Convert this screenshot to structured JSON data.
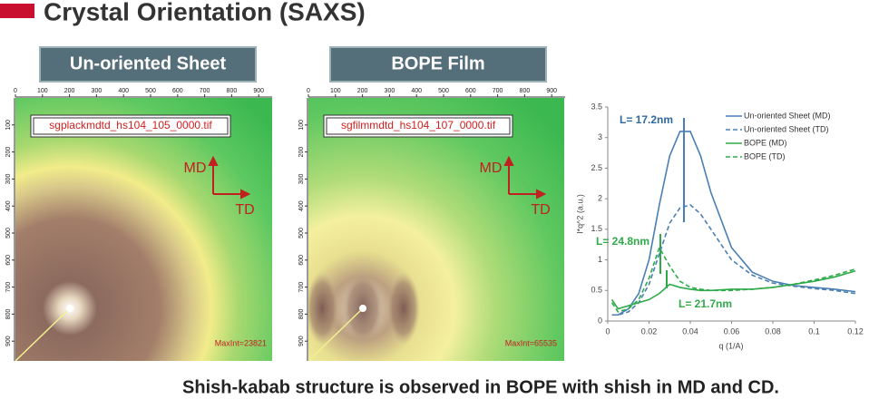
{
  "header": {
    "title": "Crystal Orientation (SAXS)"
  },
  "panels": [
    {
      "label": "Un-oriented Sheet",
      "file": "sgplackmdtd_hs104_105_0000.tif",
      "maxint": "MaxInt=23821",
      "md": "MD",
      "td": "TD"
    },
    {
      "label": "BOPE Film",
      "file": "sgfilmmdtd_hs104_107_0000.tif",
      "maxint": "MaxInt=65535",
      "md": "MD",
      "td": "TD"
    }
  ],
  "image_axis_ticks": [
    0,
    100,
    200,
    300,
    400,
    500,
    600,
    700,
    800,
    900
  ],
  "chart_data": {
    "type": "line",
    "x_label": "q (1/A)",
    "y_label": "I*q^2 (a.u.)",
    "x": [
      0.002,
      0.005,
      0.01,
      0.015,
      0.02,
      0.025,
      0.03,
      0.035,
      0.04,
      0.045,
      0.05,
      0.06,
      0.07,
      0.08,
      0.09,
      0.1,
      0.11,
      0.12
    ],
    "series": [
      {
        "name": "Un-oriented Sheet (MD)",
        "color": "#4a7fb5",
        "dash": false,
        "values": [
          0.1,
          0.1,
          0.2,
          0.45,
          1.0,
          1.9,
          2.7,
          3.1,
          3.1,
          2.7,
          2.1,
          1.2,
          0.8,
          0.65,
          0.58,
          0.55,
          0.52,
          0.48
        ]
      },
      {
        "name": "Un-oriented Sheet (TD)",
        "color": "#4a7fb5",
        "dash": true,
        "values": [
          0.1,
          0.1,
          0.15,
          0.3,
          0.6,
          1.1,
          1.6,
          1.85,
          1.9,
          1.75,
          1.5,
          1.0,
          0.75,
          0.62,
          0.57,
          0.53,
          0.5,
          0.45
        ]
      },
      {
        "name": "BOPE (MD)",
        "color": "#2eaa4a",
        "dash": false,
        "values": [
          0.35,
          0.2,
          0.25,
          0.3,
          0.35,
          0.45,
          0.6,
          0.55,
          0.52,
          0.5,
          0.5,
          0.52,
          0.52,
          0.55,
          0.6,
          0.65,
          0.72,
          0.82
        ]
      },
      {
        "name": "BOPE (TD)",
        "color": "#2eaa4a",
        "dash": true,
        "values": [
          0.3,
          0.15,
          0.2,
          0.35,
          0.7,
          1.2,
          0.9,
          0.65,
          0.55,
          0.52,
          0.5,
          0.5,
          0.52,
          0.55,
          0.6,
          0.67,
          0.75,
          0.85
        ]
      }
    ],
    "xlim": [
      0,
      0.12
    ],
    "xticks": [
      0,
      0.02,
      0.04,
      0.06,
      0.08,
      0.1,
      0.12
    ],
    "ylim": [
      0,
      3.5
    ],
    "yticks": [
      0,
      0.5,
      1,
      1.5,
      2,
      2.5,
      3,
      3.5
    ],
    "annotations": [
      "L= 17.2nm",
      "L= 24.8nm",
      "L= 21.7nm"
    ]
  },
  "footer": {
    "caption": "Shish-kabab structure is observed in BOPE with shish in MD and CD."
  }
}
